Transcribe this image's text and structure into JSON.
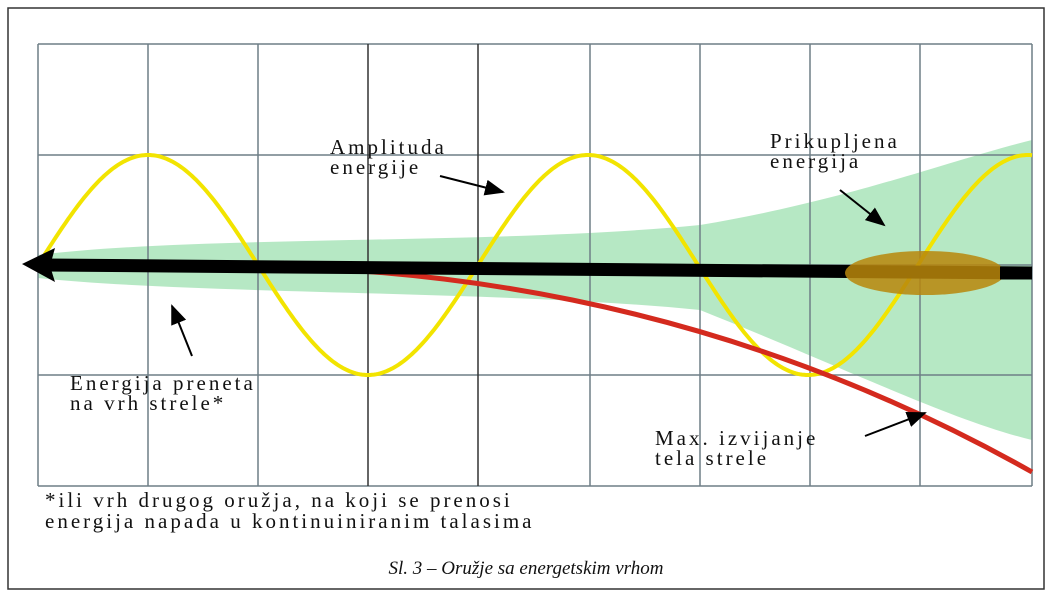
{
  "labels": [
    {
      "lines": [
        "Amplituda",
        "energije"
      ]
    },
    {
      "lines": [
        "Prikupljena",
        "energija"
      ]
    },
    {
      "lines": [
        "Energija preneta",
        "na vrh strele*"
      ]
    },
    {
      "lines": [
        "Max. izvijanje",
        "tela strele"
      ]
    }
  ],
  "footnote": [
    "*ili vrh drugog oružja, na koji se prenosi",
    "energija napada u kontinuiniranim talasima"
  ],
  "caption": "Sl. 3 – Oružje sa energetskim vrhom"
}
